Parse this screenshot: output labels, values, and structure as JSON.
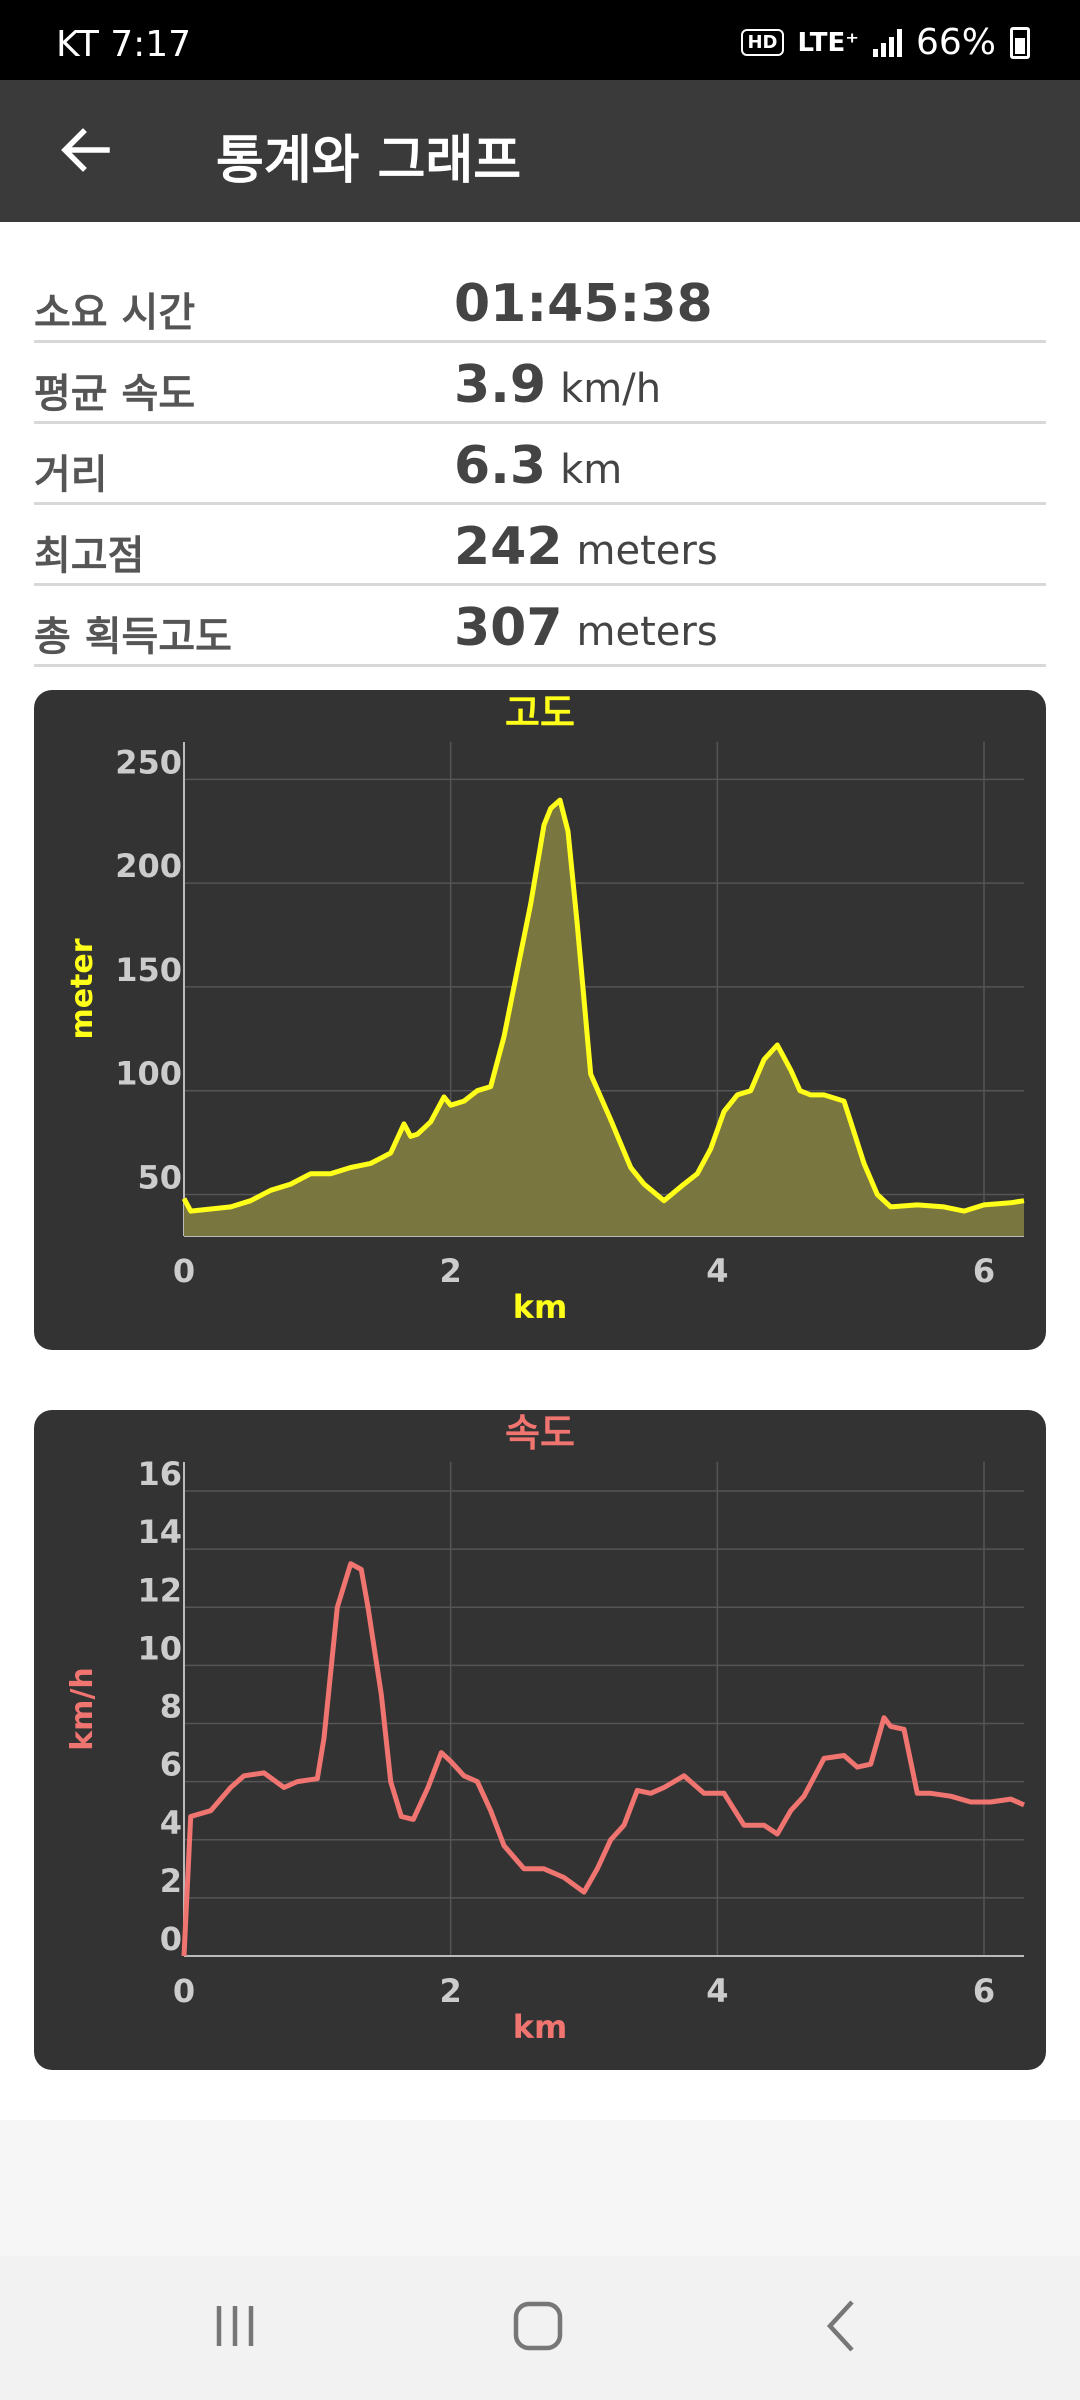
{
  "status_bar": {
    "carrier_time": "KT 7:17",
    "hd": "HD",
    "network": "LTE⁺",
    "battery": "66%"
  },
  "header": {
    "title": "통계와 그래프"
  },
  "stats": [
    {
      "label": "소요 시간",
      "value": "01:45:38",
      "unit": ""
    },
    {
      "label": "평균 속도",
      "value": "3.9",
      "unit": "km/h"
    },
    {
      "label": "거리",
      "value": "6.3",
      "unit": "km"
    },
    {
      "label": "최고점",
      "value": "242",
      "unit": "meters"
    },
    {
      "label": "총 획득고도",
      "value": "307",
      "unit": "meters"
    }
  ],
  "chart_data": [
    {
      "type": "area",
      "title": "고도",
      "xlabel": "km",
      "ylabel": "meter",
      "color": "#ffff1a",
      "xlim": [
        0,
        6.3
      ],
      "ylim": [
        30,
        268
      ],
      "xticks": [
        0,
        2,
        4,
        6
      ],
      "yticks": [
        50,
        100,
        150,
        200,
        250
      ],
      "grid": true,
      "x": [
        0,
        0.05,
        0.2,
        0.35,
        0.5,
        0.65,
        0.8,
        0.95,
        1.1,
        1.25,
        1.4,
        1.55,
        1.65,
        1.7,
        1.75,
        1.85,
        1.95,
        2.0,
        2.1,
        2.2,
        2.3,
        2.4,
        2.5,
        2.6,
        2.7,
        2.75,
        2.82,
        2.88,
        2.95,
        3.05,
        3.2,
        3.35,
        3.45,
        3.6,
        3.75,
        3.85,
        3.95,
        4.05,
        4.15,
        4.25,
        4.35,
        4.45,
        4.55,
        4.62,
        4.7,
        4.8,
        4.95,
        5.0,
        5.1,
        5.2,
        5.3,
        5.5,
        5.7,
        5.85,
        6.0,
        6.2,
        6.3
      ],
      "y": [
        48,
        42,
        43,
        44,
        47,
        52,
        55,
        60,
        60,
        63,
        65,
        70,
        84,
        78,
        79,
        85,
        97,
        93,
        95,
        100,
        102,
        126,
        158,
        190,
        228,
        236,
        240,
        225,
        180,
        108,
        86,
        63,
        55,
        47,
        55,
        60,
        72,
        90,
        98,
        100,
        115,
        122,
        110,
        100,
        98,
        98,
        95,
        85,
        65,
        50,
        44,
        45,
        44,
        42,
        45,
        46,
        47
      ]
    },
    {
      "type": "line",
      "title": "속도",
      "xlabel": "km",
      "ylabel": "km/h",
      "color": "#f07470",
      "xlim": [
        0,
        6.3
      ],
      "ylim": [
        0,
        17
      ],
      "xticks": [
        0,
        2,
        4,
        6
      ],
      "yticks": [
        0,
        2,
        4,
        6,
        8,
        10,
        12,
        14,
        16
      ],
      "grid": true,
      "x": [
        0,
        0.05,
        0.2,
        0.35,
        0.45,
        0.6,
        0.75,
        0.85,
        1.0,
        1.05,
        1.15,
        1.25,
        1.33,
        1.38,
        1.48,
        1.55,
        1.63,
        1.72,
        1.83,
        1.93,
        2.0,
        2.1,
        2.2,
        2.3,
        2.4,
        2.55,
        2.7,
        2.85,
        3.0,
        3.1,
        3.2,
        3.3,
        3.4,
        3.5,
        3.6,
        3.75,
        3.9,
        4.05,
        4.2,
        4.35,
        4.45,
        4.55,
        4.65,
        4.8,
        4.95,
        5.05,
        5.15,
        5.25,
        5.3,
        5.4,
        5.5,
        5.6,
        5.75,
        5.9,
        6.05,
        6.2,
        6.3
      ],
      "y": [
        0,
        4.8,
        5.0,
        5.8,
        6.2,
        6.3,
        5.8,
        6.0,
        6.1,
        7.5,
        12.0,
        13.5,
        13.3,
        12.0,
        9.0,
        6.0,
        4.8,
        4.7,
        5.8,
        7.0,
        6.7,
        6.2,
        6.0,
        5.0,
        3.8,
        3.0,
        3.0,
        2.7,
        2.2,
        3.0,
        4.0,
        4.5,
        5.7,
        5.6,
        5.8,
        6.2,
        5.6,
        5.6,
        4.5,
        4.5,
        4.2,
        5.0,
        5.5,
        6.8,
        6.9,
        6.5,
        6.6,
        8.2,
        7.9,
        7.8,
        5.6,
        5.6,
        5.5,
        5.3,
        5.3,
        5.4,
        5.2
      ]
    }
  ],
  "nav": {
    "recents": "recents",
    "home": "home",
    "back": "back"
  }
}
